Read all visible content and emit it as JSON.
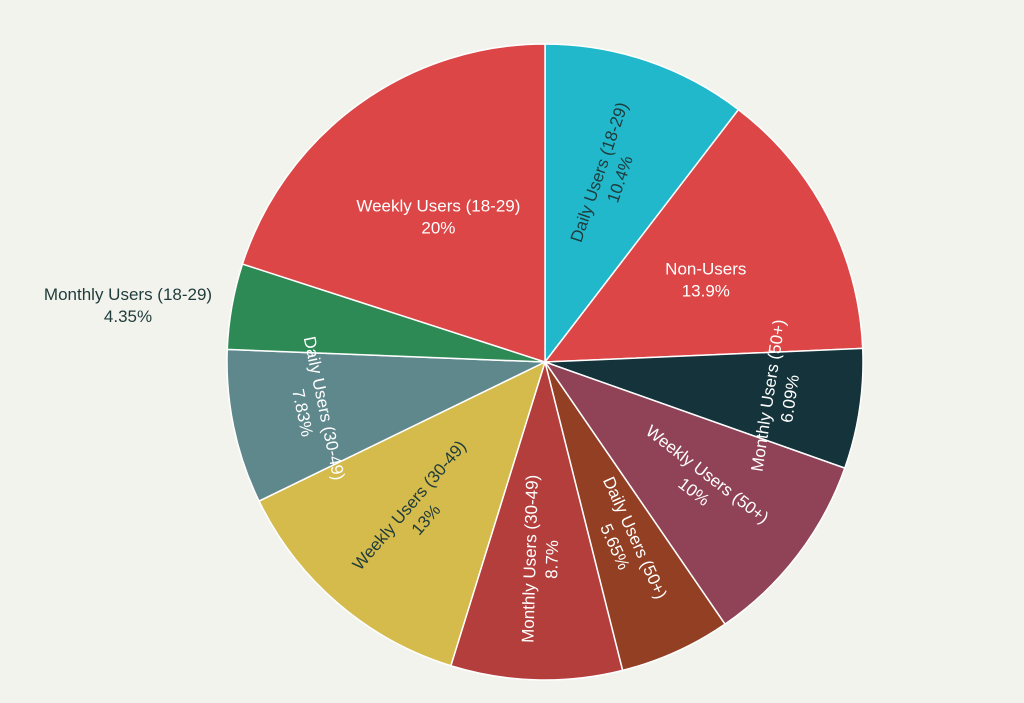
{
  "chart_data": {
    "type": "pie",
    "title": "",
    "start_angle_deg": 0,
    "direction": "clockwise",
    "legend": "none",
    "slices": [
      {
        "label": "Daily Users (18-29)",
        "value": 10.4,
        "display": "10.4%",
        "color": "#22b8cc",
        "text_color": "#1f3b3b",
        "label_rotation": "radial"
      },
      {
        "label": "Non-Users",
        "value": 13.9,
        "display": "13.9%",
        "color": "#dc4646",
        "text_color": "#ffffff",
        "label_rotation": "none"
      },
      {
        "label": "Monthly Users (50+)",
        "value": 6.09,
        "display": "6.09%",
        "color": "#14333a",
        "text_color": "#ffffff",
        "label_rotation": "tangent"
      },
      {
        "label": "Weekly Users (50+)",
        "value": 10,
        "display": "10%",
        "color": "#904257",
        "text_color": "#ffffff",
        "label_rotation": "radial"
      },
      {
        "label": "Daily Users (50+)",
        "value": 5.65,
        "display": "5.65%",
        "color": "#923f23",
        "text_color": "#ffffff",
        "label_rotation": "radial"
      },
      {
        "label": "Monthly Users (30-49)",
        "value": 8.7,
        "display": "8.7%",
        "color": "#b43e3c",
        "text_color": "#ffffff",
        "label_rotation": "radial"
      },
      {
        "label": "Weekly Users (30-49)",
        "value": 13,
        "display": "13%",
        "color": "#d4bb4c",
        "text_color": "#1f3b3b",
        "label_rotation": "radial"
      },
      {
        "label": "Daily Users (30-49)",
        "value": 7.83,
        "display": "7.83%",
        "color": "#5f888c",
        "text_color": "#ffffff",
        "label_rotation": "tangent"
      },
      {
        "label": "Monthly Users (18-29)",
        "value": 4.35,
        "display": "4.35%",
        "color": "#2e8a55",
        "text_color": "#1f3b3b",
        "label_rotation": "outside"
      },
      {
        "label": "Weekly Users (18-29)",
        "value": 20,
        "display": "20%",
        "color": "#dc4646",
        "text_color": "#ffffff",
        "label_rotation": "none"
      }
    ]
  }
}
